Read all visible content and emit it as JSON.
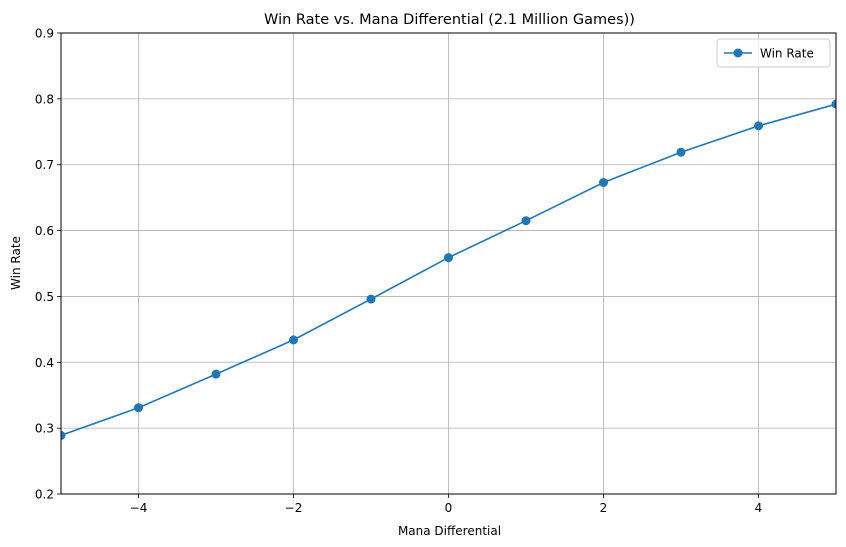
{
  "chart_data": {
    "type": "line",
    "title": "Win Rate vs. Mana Differential (2.1 Million Games))",
    "xlabel": "Mana Differential",
    "ylabel": "Win Rate",
    "xlim": [
      -5,
      5
    ],
    "ylim": [
      0.2,
      0.9
    ],
    "xticks": [
      -4,
      -2,
      0,
      2,
      4
    ],
    "xtick_labels": [
      "−4",
      "−2",
      "0",
      "2",
      "4"
    ],
    "yticks": [
      0.2,
      0.3,
      0.4,
      0.5,
      0.6,
      0.7,
      0.8,
      0.9
    ],
    "ytick_labels": [
      "0.2",
      "0.3",
      "0.4",
      "0.5",
      "0.6",
      "0.7",
      "0.8",
      "0.9"
    ],
    "grid": true,
    "legend_position": "top-right",
    "series": [
      {
        "name": "Win Rate",
        "color": "#1f77b4",
        "marker": "circle",
        "x": [
          -5,
          -4,
          -3,
          -2,
          -1,
          0,
          1,
          2,
          3,
          4,
          5
        ],
        "y": [
          0.289,
          0.331,
          0.382,
          0.434,
          0.496,
          0.559,
          0.615,
          0.673,
          0.719,
          0.759,
          0.792
        ]
      }
    ]
  }
}
